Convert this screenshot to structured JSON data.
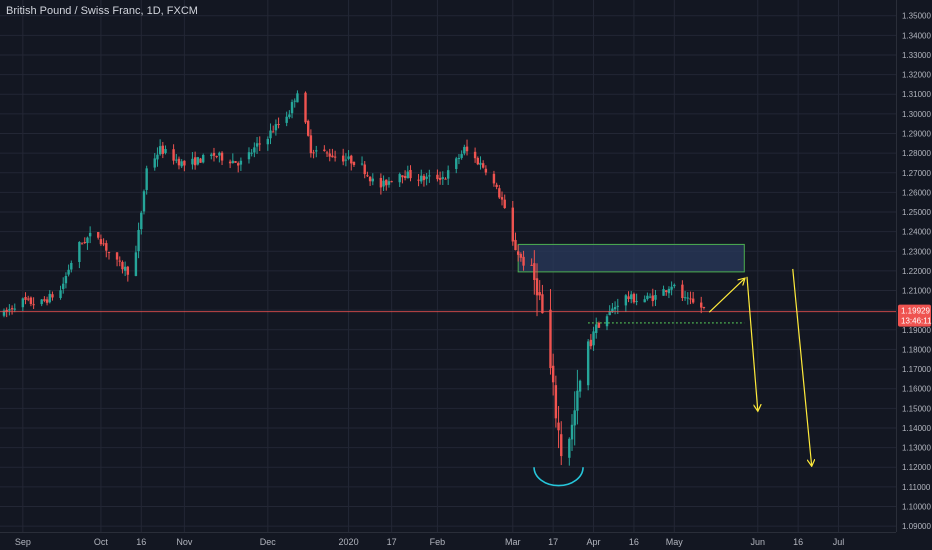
{
  "chart_data": {
    "type": "candlestick",
    "title": "British Pound / Swiss Franc, 1D, FXCM",
    "x_tick_labels": [
      "Sep",
      "Oct",
      "16",
      "Nov",
      "Dec",
      "2020",
      "17",
      "Feb",
      "Mar",
      "17",
      "Apr",
      "16",
      "May",
      "Jun",
      "16",
      "Jul"
    ],
    "y_tick_values": [
      1.09,
      1.1,
      1.11,
      1.12,
      1.13,
      1.14,
      1.15,
      1.16,
      1.17,
      1.18,
      1.19,
      1.2,
      1.21,
      1.22,
      1.23,
      1.24,
      1.25,
      1.26,
      1.27,
      1.28,
      1.29,
      1.3,
      1.31,
      1.32,
      1.33,
      1.34,
      1.35
    ],
    "y_tick_labels": [
      "1.09000",
      "1.10000",
      "1.11000",
      "1.12000",
      "1.13000",
      "1.14000",
      "1.15000",
      "1.16000",
      "1.17000",
      "1.18000",
      "1.19000",
      "1.20000",
      "1.21000",
      "1.22000",
      "1.23000",
      "1.24000",
      "1.25000",
      "1.26000",
      "1.27000",
      "1.28000",
      "1.29000",
      "1.30000",
      "1.31000",
      "1.32000",
      "1.33000",
      "1.34000",
      "1.35000"
    ],
    "ylim": [
      1.087,
      1.358
    ],
    "current_price": 1.19929,
    "current_price_label": "1.19929",
    "countdown_label": "13:46:11",
    "colors": {
      "up": "#26a69a",
      "down": "#ef5350",
      "price_line": "#ef5350",
      "zone_border": "#4caf50",
      "zone_fill": "#2a3a5c",
      "arrow": "#ffeb3b",
      "support": "#4caf50",
      "arc": "#26c6da",
      "grid": "#232735",
      "axis_bg": "#131722"
    },
    "resistance_zone": {
      "low": 1.2195,
      "high": 1.2335,
      "from_date": "2020-03-04",
      "to_date": "2020-05-27"
    },
    "support_line": {
      "value": 1.1935,
      "from_date": "2020-03-30",
      "to_date": "2020-05-27"
    },
    "anchors": [
      [
        "2019-08-26",
        1.198
      ],
      [
        "2019-09-01",
        1.205
      ],
      [
        "2019-09-08",
        1.203
      ],
      [
        "2019-09-16",
        1.21
      ],
      [
        "2019-09-22",
        1.232
      ],
      [
        "2019-09-29",
        1.24
      ],
      [
        "2019-10-06",
        1.225
      ],
      [
        "2019-10-13",
        1.218
      ],
      [
        "2019-10-16",
        1.25
      ],
      [
        "2019-10-18",
        1.272
      ],
      [
        "2019-10-23",
        1.282
      ],
      [
        "2019-11-01",
        1.274
      ],
      [
        "2019-11-12",
        1.279
      ],
      [
        "2019-11-22",
        1.275
      ],
      [
        "2019-12-02",
        1.289
      ],
      [
        "2019-12-10",
        1.301
      ],
      [
        "2019-12-13",
        1.312
      ],
      [
        "2019-12-18",
        1.282
      ],
      [
        "2019-12-26",
        1.279
      ],
      [
        "2020-01-05",
        1.275
      ],
      [
        "2020-01-12",
        1.262
      ],
      [
        "2020-01-20",
        1.27
      ],
      [
        "2020-01-28",
        1.267
      ],
      [
        "2020-02-06",
        1.268
      ],
      [
        "2020-02-13",
        1.282
      ],
      [
        "2020-02-21",
        1.272
      ],
      [
        "2020-02-27",
        1.256
      ],
      [
        "2020-03-02",
        1.234
      ],
      [
        "2020-03-06",
        1.224
      ],
      [
        "2020-03-11",
        1.213
      ],
      [
        "2020-03-14",
        1.19
      ],
      [
        "2020-03-17",
        1.158
      ],
      [
        "2020-03-20",
        1.128
      ],
      [
        "2020-03-24",
        1.14
      ],
      [
        "2020-03-28",
        1.17
      ],
      [
        "2020-04-01",
        1.19
      ],
      [
        "2020-04-06",
        1.197
      ],
      [
        "2020-04-12",
        1.207
      ],
      [
        "2020-04-18",
        1.205
      ],
      [
        "2020-04-24",
        1.207
      ],
      [
        "2020-04-30",
        1.213
      ],
      [
        "2020-05-05",
        1.205
      ],
      [
        "2020-05-12",
        1.201
      ]
    ],
    "annotations": [
      {
        "type": "arrow",
        "from": [
          "2020-05-14",
          1.199
        ],
        "to": [
          "2020-05-27",
          1.216
        ]
      },
      {
        "type": "arrow",
        "from": [
          "2020-05-28",
          1.217
        ],
        "to": [
          "2020-06-01",
          1.149
        ]
      },
      {
        "type": "arrow",
        "from": [
          "2020-06-14",
          1.221
        ],
        "to": [
          "2020-06-21",
          1.121
        ]
      },
      {
        "type": "arc",
        "center": [
          "2020-03-19",
          1.12
        ],
        "radius_days": 3.5
      }
    ],
    "grid": true,
    "legend": "none"
  }
}
